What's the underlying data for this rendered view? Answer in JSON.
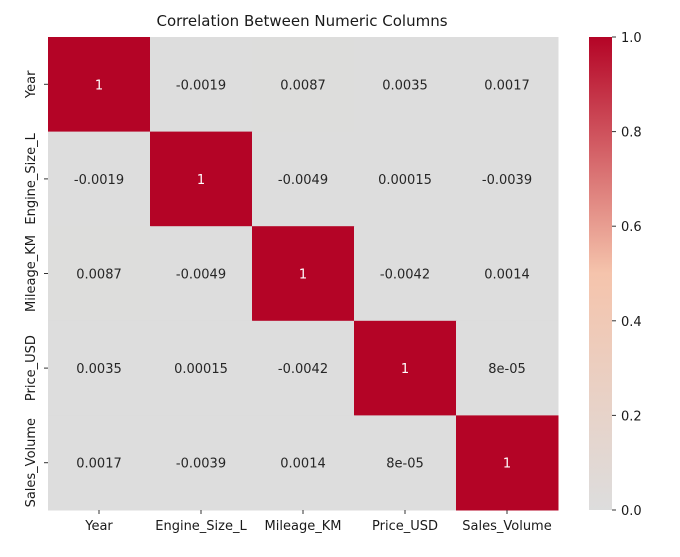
{
  "chart_data": {
    "type": "heatmap",
    "title": "Correlation Between Numeric Columns",
    "xlabel": "",
    "ylabel": "",
    "x_categories": [
      "Year",
      "Engine_Size_L",
      "Mileage_KM",
      "Price_USD",
      "Sales_Volume"
    ],
    "y_categories": [
      "Year",
      "Engine_Size_L",
      "Mileage_KM",
      "Price_USD",
      "Sales_Volume"
    ],
    "values": [
      [
        1,
        -0.0019,
        0.0087,
        0.0035,
        0.0017
      ],
      [
        -0.0019,
        1,
        -0.0049,
        0.00015,
        -0.0039
      ],
      [
        0.0087,
        -0.0049,
        1,
        -0.0042,
        0.0014
      ],
      [
        0.0035,
        0.00015,
        -0.0042,
        1,
        8e-05
      ],
      [
        0.0017,
        -0.0039,
        0.0014,
        8e-05,
        1
      ]
    ],
    "annotations": [
      [
        "1",
        "-0.0019",
        "0.0087",
        "0.0035",
        "0.0017"
      ],
      [
        "-0.0019",
        "1",
        "-0.0049",
        "0.00015",
        "-0.0039"
      ],
      [
        "0.0087",
        "-0.0049",
        "1",
        "-0.0042",
        "0.0014"
      ],
      [
        "0.0035",
        "0.00015",
        "-0.0042",
        "1",
        "8e-05"
      ],
      [
        "0.0017",
        "-0.0039",
        "0.0014",
        "8e-05",
        "1"
      ]
    ],
    "colormap": "coolwarm",
    "colorbar": {
      "range": [
        0.0,
        1.0
      ],
      "ticks": [
        0.0,
        0.2,
        0.4,
        0.6,
        0.8,
        1.0
      ],
      "tick_labels": [
        "0.0",
        "0.2",
        "0.4",
        "0.6",
        "0.8",
        "1.0"
      ]
    },
    "colors": {
      "low": "#dddddd",
      "mid": "#f5c4ac",
      "high": "#b40426",
      "annotation_dark": "#262626",
      "annotation_light": "#ffffff"
    }
  }
}
